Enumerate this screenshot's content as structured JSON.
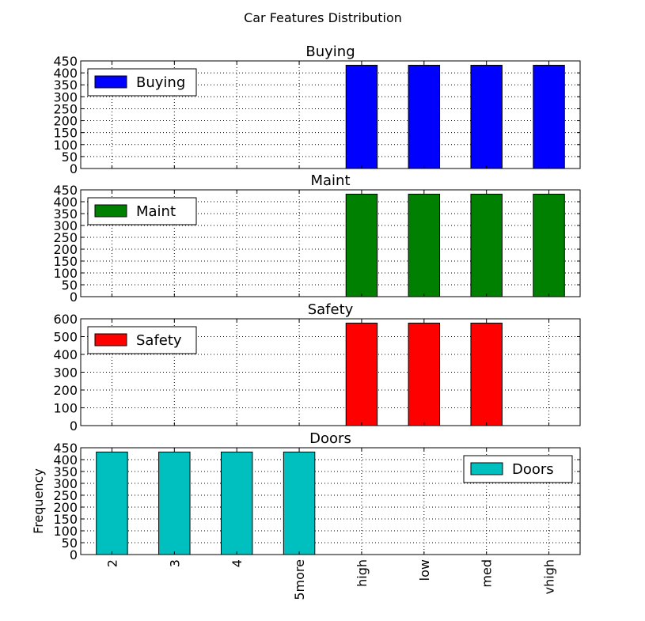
{
  "suptitle": "Car Features Distribution",
  "chart_data": [
    {
      "type": "bar",
      "title": "Buying",
      "categories": [
        "2",
        "3",
        "4",
        "5more",
        "high",
        "low",
        "med",
        "vhigh"
      ],
      "series": [
        {
          "name": "Buying",
          "values": [
            0,
            0,
            0,
            0,
            432,
            432,
            432,
            432
          ]
        }
      ],
      "ylim": [
        0,
        450
      ],
      "yticks": [
        0,
        50,
        100,
        150,
        200,
        250,
        300,
        350,
        400,
        450
      ],
      "color": "#0000ff",
      "legend": "upper left",
      "grid": true,
      "ylabel": ""
    },
    {
      "type": "bar",
      "title": "Maint",
      "categories": [
        "2",
        "3",
        "4",
        "5more",
        "high",
        "low",
        "med",
        "vhigh"
      ],
      "series": [
        {
          "name": "Maint",
          "values": [
            0,
            0,
            0,
            0,
            432,
            432,
            432,
            432
          ]
        }
      ],
      "ylim": [
        0,
        450
      ],
      "yticks": [
        0,
        50,
        100,
        150,
        200,
        250,
        300,
        350,
        400,
        450
      ],
      "color": "#008000",
      "legend": "upper left",
      "grid": true,
      "ylabel": ""
    },
    {
      "type": "bar",
      "title": "Safety",
      "categories": [
        "2",
        "3",
        "4",
        "5more",
        "high",
        "low",
        "med",
        "vhigh"
      ],
      "series": [
        {
          "name": "Safety",
          "values": [
            0,
            0,
            0,
            0,
            576,
            576,
            576,
            0
          ]
        }
      ],
      "ylim": [
        0,
        600
      ],
      "yticks": [
        0,
        100,
        200,
        300,
        400,
        500,
        600
      ],
      "color": "#ff0000",
      "legend": "upper left",
      "grid": true,
      "ylabel": ""
    },
    {
      "type": "bar",
      "title": "Doors",
      "categories": [
        "2",
        "3",
        "4",
        "5more",
        "high",
        "low",
        "med",
        "vhigh"
      ],
      "series": [
        {
          "name": "Doors",
          "values": [
            432,
            432,
            432,
            432,
            0,
            0,
            0,
            0
          ]
        }
      ],
      "ylim": [
        0,
        450
      ],
      "yticks": [
        0,
        50,
        100,
        150,
        200,
        250,
        300,
        350,
        400,
        450
      ],
      "color": "#00bfbf",
      "legend": "upper right",
      "grid": true,
      "ylabel": "Frequency"
    }
  ]
}
